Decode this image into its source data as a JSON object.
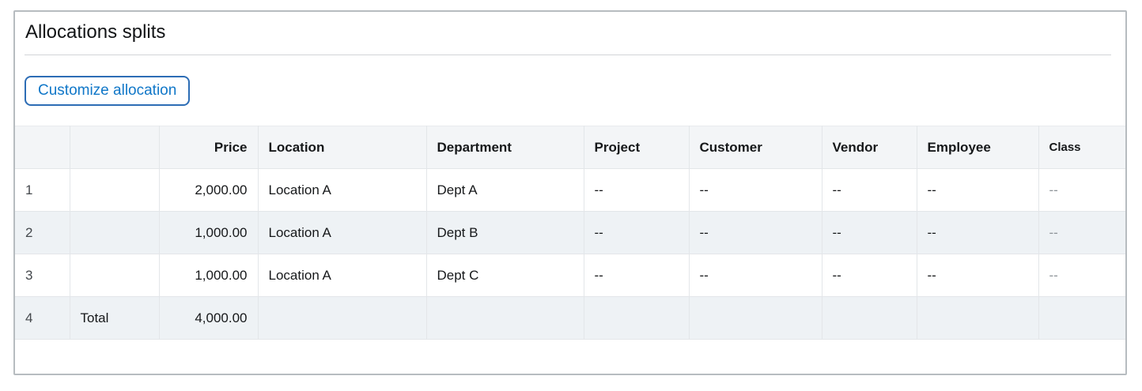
{
  "panel": {
    "title": "Allocations splits"
  },
  "toolbar": {
    "customize_button_label": "Customize allocation"
  },
  "table": {
    "columns": [
      {
        "key": "row_num",
        "label": ""
      },
      {
        "key": "label",
        "label": ""
      },
      {
        "key": "price",
        "label": "Price",
        "align": "right"
      },
      {
        "key": "location",
        "label": "Location"
      },
      {
        "key": "department",
        "label": "Department"
      },
      {
        "key": "project",
        "label": "Project"
      },
      {
        "key": "customer",
        "label": "Customer"
      },
      {
        "key": "vendor",
        "label": "Vendor"
      },
      {
        "key": "employee",
        "label": "Employee"
      },
      {
        "key": "class",
        "label": "Class"
      }
    ],
    "rows": [
      {
        "row_num": "1",
        "label": "",
        "price": "2,000.00",
        "location": "Location A",
        "department": "Dept A",
        "project": "--",
        "customer": "--",
        "vendor": "--",
        "employee": "--",
        "class": "--"
      },
      {
        "row_num": "2",
        "label": "",
        "price": "1,000.00",
        "location": "Location A",
        "department": "Dept B",
        "project": "--",
        "customer": "--",
        "vendor": "--",
        "employee": "--",
        "class": "--"
      },
      {
        "row_num": "3",
        "label": "",
        "price": "1,000.00",
        "location": "Location A",
        "department": "Dept C",
        "project": "--",
        "customer": "--",
        "vendor": "--",
        "employee": "--",
        "class": "--"
      },
      {
        "row_num": "4",
        "label": "Total",
        "price": "4,000.00",
        "location": "",
        "department": "",
        "project": "",
        "customer": "",
        "vendor": "",
        "employee": "",
        "class": ""
      }
    ]
  },
  "colors": {
    "accent_blue_text": "#1077c8",
    "button_border_blue": "#2d6db5",
    "header_background": "#f3f5f7",
    "stripe_background": "#eef2f5",
    "grid_line": "#e3e6e9",
    "panel_border": "#b7bcc0",
    "muted_dash_text": "#8e9499"
  }
}
